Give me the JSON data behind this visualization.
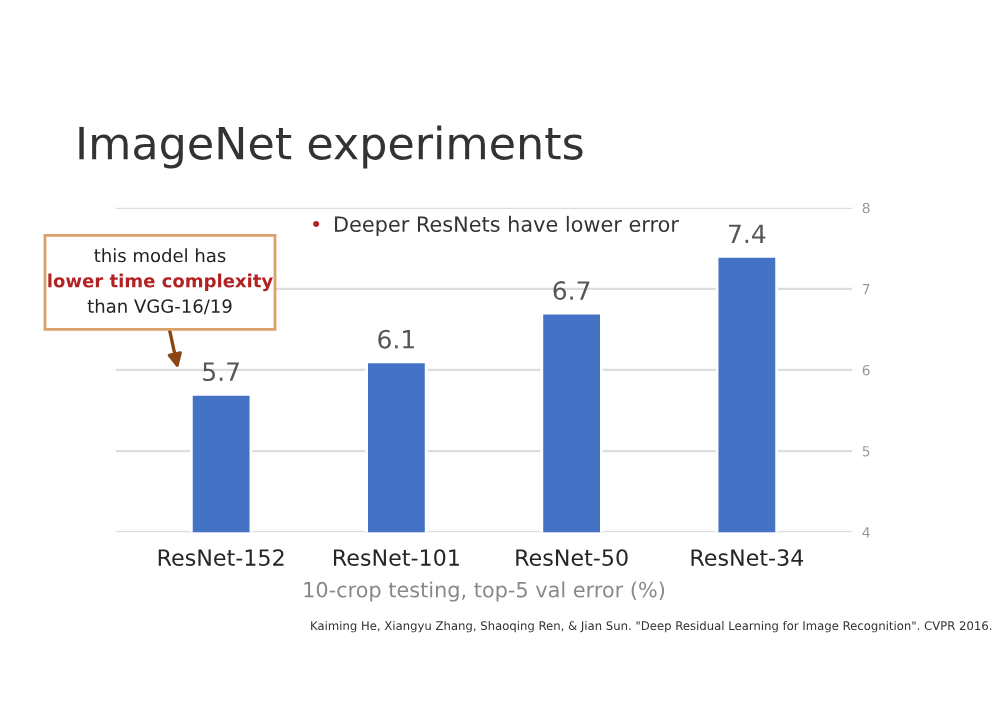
{
  "chart_data": {
    "type": "bar",
    "title": "ImageNet experiments",
    "categories": [
      "ResNet-152",
      "ResNet-101",
      "ResNet-50",
      "ResNet-34"
    ],
    "values": [
      5.7,
      6.1,
      6.7,
      7.4
    ],
    "color": "#4472c4",
    "data_labels": true,
    "xlabel": "10-crop testing, top-5 val error (%)",
    "ylim": [
      4,
      8
    ],
    "yticks": [
      4,
      5,
      6,
      7,
      8
    ],
    "grid": "y",
    "annotations": [
      {
        "text": "• Deeper ResNets have lower error"
      },
      "this model has\nlower time complexity\nthan VGG-16/19",
      {
        "text": "Kaiming He, Xiangyu Zhang, Shaoqing Ren, & Jian Sun. \"Deep Residual Learning for Image Recognition\". CVPR 2016."
      }
    ]
  }
}
